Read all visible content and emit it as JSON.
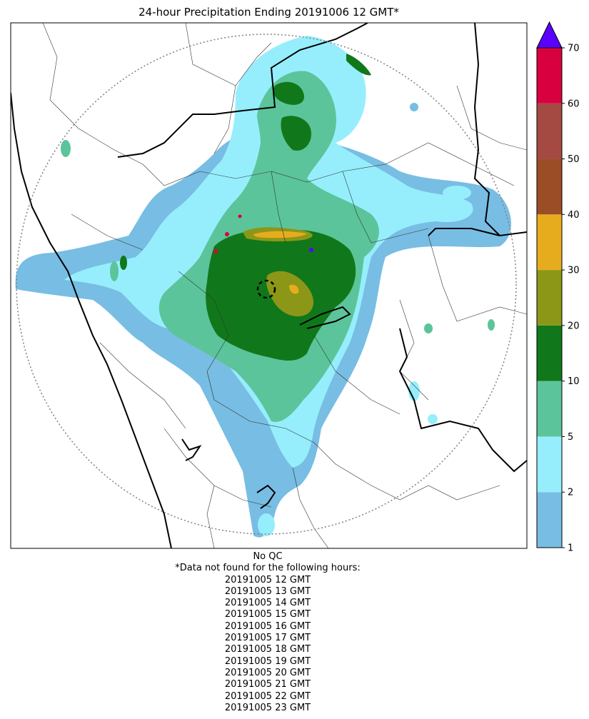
{
  "title": "24-hour Precipitation Ending 20191006 12 GMT*",
  "colorbar": {
    "levels": [
      1,
      2,
      5,
      10,
      20,
      30,
      40,
      50,
      60,
      70
    ],
    "tick_labels": [
      "1",
      "2",
      "5",
      "10",
      "20",
      "30",
      "40",
      "50",
      "60",
      "70"
    ],
    "colors": [
      "#78bde3",
      "#96eefd",
      "#5cc49a",
      "#10781a",
      "#8c9718",
      "#e7ac1e",
      "#9b4e26",
      "#a44a43",
      "#d8003f"
    ],
    "extend_color": "#5a00ff"
  },
  "footer": {
    "qc_note": "No QC",
    "missing_header": "*Data not found for the following hours:",
    "missing_hours": [
      "20191005 12 GMT",
      "20191005 13 GMT",
      "20191005 14 GMT",
      "20191005 15 GMT",
      "20191005 16 GMT",
      "20191005 17 GMT",
      "20191005 18 GMT",
      "20191005 19 GMT",
      "20191005 20 GMT",
      "20191005 21 GMT",
      "20191005 22 GMT",
      "20191005 23 GMT"
    ]
  }
}
